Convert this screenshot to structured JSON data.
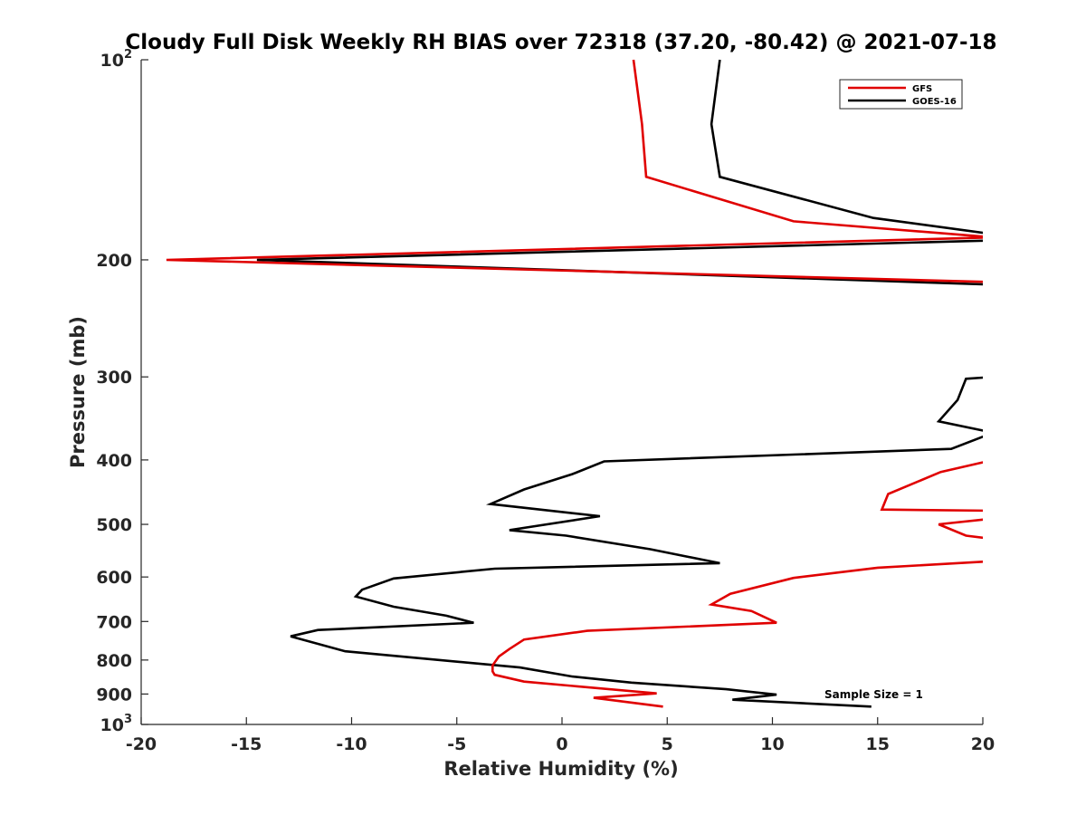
{
  "chart_data": {
    "type": "line",
    "title": "Cloudy Full Disk Weekly RH BIAS over 72318 (37.20, -80.42) @ 2021-07-18",
    "xlabel": "Relative Humidity (%)",
    "ylabel": "Pressure (mb)",
    "xlim": [
      -20,
      20
    ],
    "ylim": [
      100,
      1000
    ],
    "yscale": "log",
    "y_reversed": true,
    "xticks": [
      -20,
      -15,
      -10,
      -5,
      0,
      5,
      10,
      15,
      20
    ],
    "xtick_labels": [
      "-20",
      "-15",
      "-10",
      "-5",
      "0",
      "5",
      "10",
      "15",
      "20"
    ],
    "yticks": [
      100,
      200,
      300,
      400,
      500,
      600,
      700,
      800,
      900,
      1000
    ],
    "ytick_labels": [
      {
        "base": "10",
        "exp": "2"
      },
      {
        "base": "200",
        "exp": ""
      },
      {
        "base": "300",
        "exp": ""
      },
      {
        "base": "400",
        "exp": ""
      },
      {
        "base": "500",
        "exp": ""
      },
      {
        "base": "600",
        "exp": ""
      },
      {
        "base": "700",
        "exp": ""
      },
      {
        "base": "800",
        "exp": ""
      },
      {
        "base": "900",
        "exp": ""
      },
      {
        "base": "10",
        "exp": "3"
      }
    ],
    "legend_position": "top-right",
    "annotation": "Sample Size = 1",
    "series": [
      {
        "name": "GFS",
        "color": "#e00000",
        "points": [
          [
            3.4,
            100
          ],
          [
            3.8,
            125
          ],
          [
            4.0,
            150
          ],
          [
            11.0,
            175
          ],
          [
            20.5,
            185
          ],
          [
            -18.8,
            200
          ],
          [
            20.5,
            216
          ],
          [
            20.5,
            400
          ],
          [
            18.0,
            417
          ],
          [
            15.5,
            450
          ],
          [
            15.2,
            475
          ],
          [
            20.5,
            477
          ],
          [
            20.5,
            490
          ],
          [
            17.9,
            500
          ],
          [
            19.2,
            520
          ],
          [
            20.5,
            526
          ],
          [
            20.5,
            568
          ],
          [
            15.0,
            581
          ],
          [
            11.0,
            602
          ],
          [
            8.0,
            636
          ],
          [
            7.1,
            660
          ],
          [
            9.0,
            675
          ],
          [
            10.2,
            703
          ],
          [
            1.2,
            723
          ],
          [
            -1.8,
            745
          ],
          [
            -2.5,
            770
          ],
          [
            -3.0,
            790
          ],
          [
            -3.3,
            815
          ],
          [
            -3.3,
            832
          ],
          [
            -3.2,
            842
          ],
          [
            -1.8,
            862
          ],
          [
            4.5,
            898
          ],
          [
            1.5,
            912
          ],
          [
            4.8,
            940
          ]
        ]
      },
      {
        "name": "GOES-16",
        "color": "#000000",
        "points": [
          [
            7.5,
            100
          ],
          [
            7.1,
            125
          ],
          [
            7.5,
            150
          ],
          [
            14.8,
            173
          ],
          [
            20.5,
            183
          ],
          [
            20.5,
            187
          ],
          [
            -14.5,
            200
          ],
          [
            20.5,
            218
          ],
          [
            20.5,
            300
          ],
          [
            19.2,
            302
          ],
          [
            18.8,
            325
          ],
          [
            17.9,
            350
          ],
          [
            20.5,
            364
          ],
          [
            18.5,
            385
          ],
          [
            2.0,
            402
          ],
          [
            0.5,
            420
          ],
          [
            -1.8,
            443
          ],
          [
            -3.4,
            466
          ],
          [
            1.8,
            486
          ],
          [
            -2.5,
            510
          ],
          [
            0.2,
            520
          ],
          [
            4.2,
            545
          ],
          [
            7.5,
            572
          ],
          [
            -3.2,
            583
          ],
          [
            -8.0,
            603
          ],
          [
            -9.5,
            627
          ],
          [
            -9.8,
            642
          ],
          [
            -8.0,
            665
          ],
          [
            -5.5,
            686
          ],
          [
            -4.2,
            703
          ],
          [
            -11.6,
            721
          ],
          [
            -12.9,
            737
          ],
          [
            -10.3,
            776
          ],
          [
            -2.0,
            821
          ],
          [
            0.5,
            847
          ],
          [
            3.3,
            865
          ],
          [
            7.8,
            885
          ],
          [
            10.2,
            902
          ],
          [
            8.1,
            918
          ],
          [
            14.7,
            940
          ]
        ]
      }
    ]
  }
}
